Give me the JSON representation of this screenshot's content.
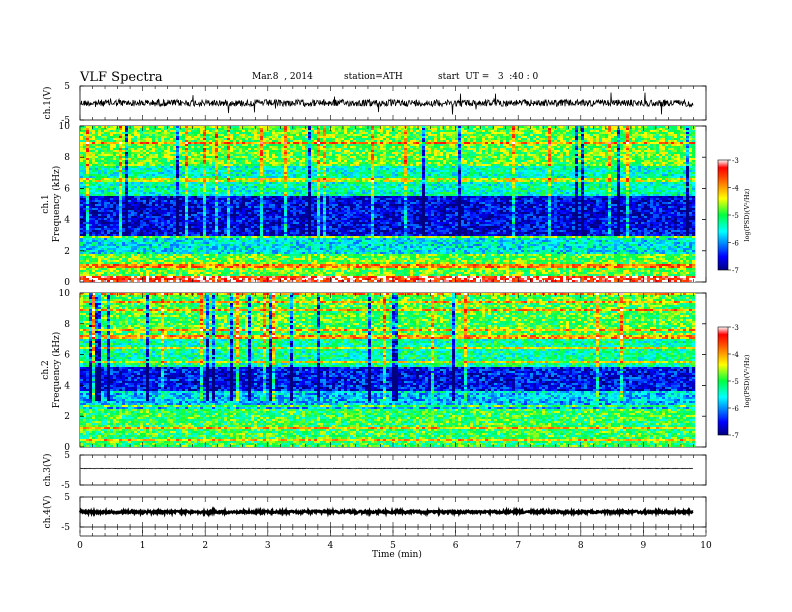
{
  "header": {
    "title": "VLF  Spectra",
    "date": "Mar.8  , 2014",
    "station": "station=ATH",
    "start": "start  UT =   3  :40 : 0"
  },
  "chart_data": [
    {
      "type": "line",
      "id": "ch1-waveform",
      "ylabel": "ch.1(V)",
      "ylim": [
        -5,
        5
      ],
      "yticks": [
        -5,
        5
      ],
      "xlim": [
        0,
        10
      ],
      "x_extent": [
        0,
        9.8
      ],
      "baseline": 0,
      "envelope": [
        -1,
        1
      ],
      "color": "#000000"
    },
    {
      "type": "heatmap",
      "id": "ch1-spectrogram",
      "ylabel_top": "ch.1",
      "ylabel": "Frequency  (kHz)",
      "ylim": [
        0,
        10
      ],
      "yticks": [
        0,
        2,
        4,
        6,
        8,
        10
      ],
      "xlim": [
        0,
        10
      ],
      "x_extent": [
        0,
        9.8
      ],
      "colorbar": {
        "label": "log(PSD)(V²/Hz)",
        "range": [
          -7,
          -3
        ],
        "ticks": [
          -7,
          -6,
          -5,
          -4,
          -3
        ]
      },
      "bands_khz": [
        {
          "from": 0.0,
          "to": 0.4,
          "level": -3.3
        },
        {
          "from": 0.4,
          "to": 1.8,
          "level": -4.8
        },
        {
          "from": 1.8,
          "to": 3.0,
          "level": -5.6
        },
        {
          "from": 3.0,
          "to": 5.5,
          "level": -6.6
        },
        {
          "from": 5.5,
          "to": 7.5,
          "level": -5.4
        },
        {
          "from": 7.5,
          "to": 10.0,
          "level": -4.8
        }
      ]
    },
    {
      "type": "heatmap",
      "id": "ch2-spectrogram",
      "ylabel_top": "ch.2",
      "ylabel": "Frequency  (kHz)",
      "ylim": [
        0,
        10
      ],
      "yticks": [
        0,
        2,
        4,
        6,
        8,
        10
      ],
      "xlim": [
        0,
        10
      ],
      "x_extent": [
        0,
        9.8
      ],
      "colorbar": {
        "label": "log(PSD)(V²/Hz)",
        "range": [
          -7,
          -3
        ],
        "ticks": [
          -7,
          -6,
          -5,
          -4,
          -3
        ]
      },
      "bands_khz": [
        {
          "from": 0.0,
          "to": 2.5,
          "level": -5.0
        },
        {
          "from": 2.5,
          "to": 3.5,
          "level": -5.8
        },
        {
          "from": 3.5,
          "to": 5.2,
          "level": -6.5
        },
        {
          "from": 5.2,
          "to": 7.0,
          "level": -5.3
        },
        {
          "from": 7.0,
          "to": 10.0,
          "level": -4.9
        }
      ]
    },
    {
      "type": "line",
      "id": "ch3-waveform",
      "ylabel": "ch.3(V)",
      "ylim": [
        -5,
        5
      ],
      "yticks": [
        -5,
        5
      ],
      "xlim": [
        0,
        10
      ],
      "x_extent": [
        0,
        9.8
      ],
      "baseline": 0.5,
      "envelope": [
        0.4,
        0.6
      ],
      "color": "#000000"
    },
    {
      "type": "line",
      "id": "ch4-waveform",
      "ylabel": "ch.4(V)",
      "ylim": [
        -5,
        5
      ],
      "yticks": [
        -5,
        5
      ],
      "xlim": [
        0,
        10
      ],
      "x_extent": [
        0,
        9.8
      ],
      "baseline": 0,
      "envelope": [
        -0.4,
        0.4
      ],
      "color": "#000000"
    }
  ],
  "xaxis": {
    "label": "Time  (min)",
    "ticks": [
      "0",
      "1",
      "2",
      "3",
      "4",
      "5",
      "6",
      "7",
      "8",
      "9",
      "10"
    ]
  }
}
